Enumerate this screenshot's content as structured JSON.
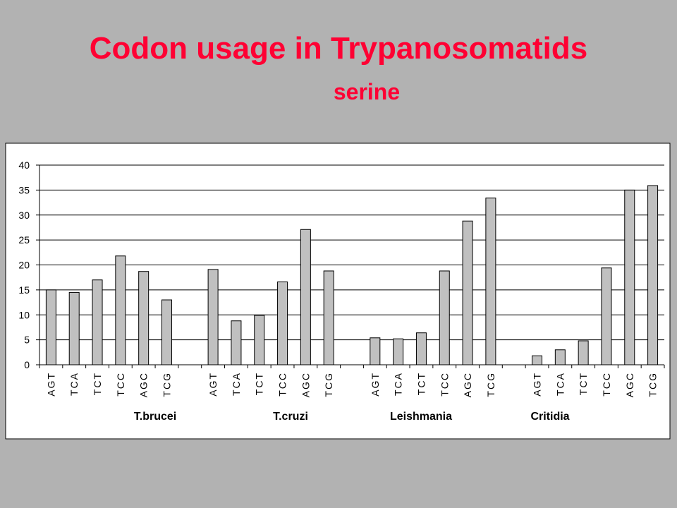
{
  "chart_data": {
    "type": "bar",
    "title": "Codon usage in Trypanosomatids",
    "subtitle": "serine",
    "categories": [
      "AGT",
      "TCA",
      "TCT",
      "TCC",
      "AGC",
      "TCG",
      null,
      "AGT",
      "TCA",
      "TCT",
      "TCC",
      "AGC",
      "TCG",
      null,
      "AGT",
      "TCA",
      "TCT",
      "TCC",
      "AGC",
      "TCG",
      null,
      "AGT",
      "TCA",
      "TCT",
      "TCC",
      "AGC",
      "TCG"
    ],
    "values": [
      15,
      14.5,
      17,
      21.8,
      18.7,
      13,
      null,
      19.1,
      8.8,
      9.9,
      16.6,
      27.1,
      18.8,
      null,
      5.4,
      5.2,
      6.4,
      18.8,
      28.8,
      33.4,
      null,
      1.8,
      3,
      4.8,
      19.4,
      35,
      35.9
    ],
    "groups": [
      "T.brucei",
      "T.cruzi",
      "Leishmania",
      "Critidia"
    ],
    "color": "#c0c0c0",
    "ylim": [
      0,
      40
    ],
    "yticks": [
      0,
      5,
      10,
      15,
      20,
      25,
      30,
      35,
      40
    ],
    "grid": true
  }
}
